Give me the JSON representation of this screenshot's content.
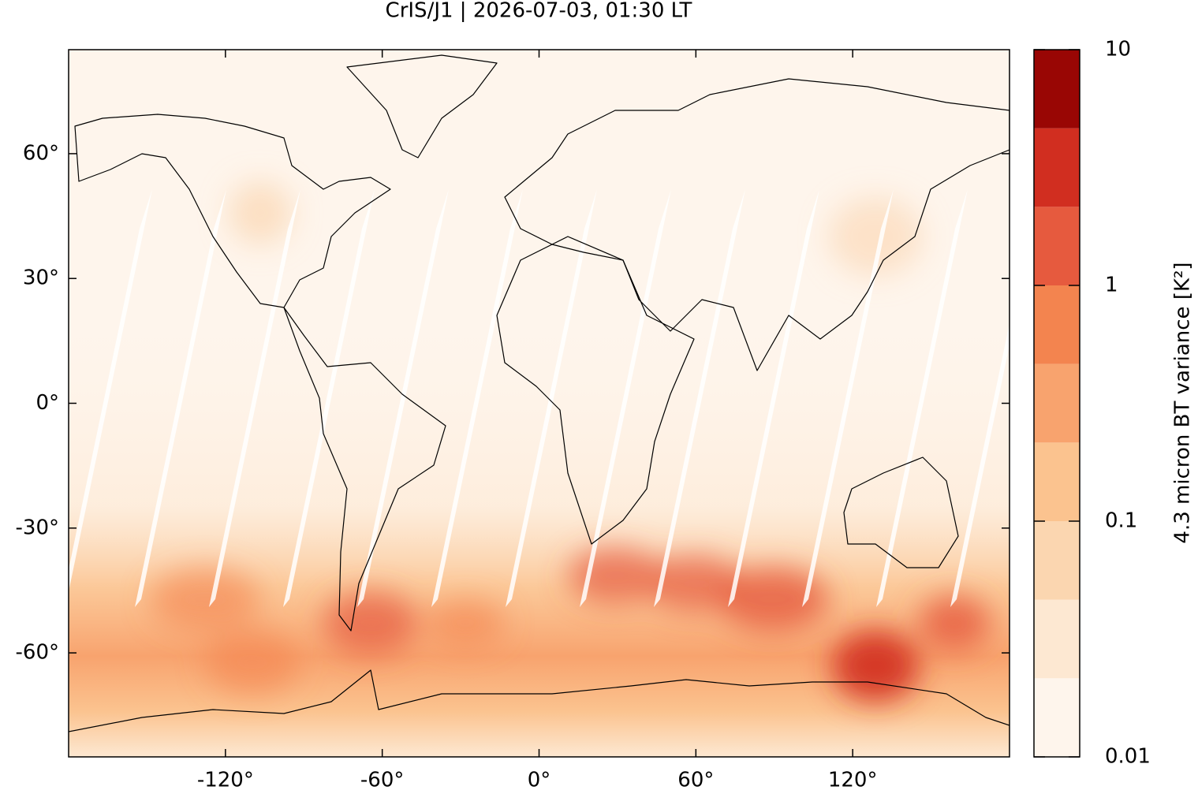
{
  "chart_data": {
    "type": "map",
    "title": "CrIS/J1 | 2026-07-03, 01:30 LT",
    "xlim": [
      -180,
      180
    ],
    "ylim": [
      -85,
      85
    ],
    "xticks": [
      {
        "value": -120,
        "label": "-120°"
      },
      {
        "value": -60,
        "label": "-60°"
      },
      {
        "value": 0,
        "label": "0°"
      },
      {
        "value": 60,
        "label": "60°"
      },
      {
        "value": 120,
        "label": "120°"
      }
    ],
    "yticks": [
      {
        "value": -60,
        "label": "-60°"
      },
      {
        "value": -30,
        "label": "-30°"
      },
      {
        "value": 0,
        "label": "0°"
      },
      {
        "value": 30,
        "label": "30°"
      },
      {
        "value": 60,
        "label": "60°"
      }
    ],
    "colorbar": {
      "label": "4.3 micron BT variance [K²]",
      "scale": "log",
      "lim": [
        0.01,
        10
      ],
      "ticks": [
        0.01,
        0.1,
        1,
        10
      ],
      "colors": [
        "#fef5ec",
        "#fde8d2",
        "#fbd6b0",
        "#fbc38f",
        "#f8a36e",
        "#f3844f",
        "#e65a3e",
        "#d12e20",
        "#990604"
      ]
    }
  }
}
